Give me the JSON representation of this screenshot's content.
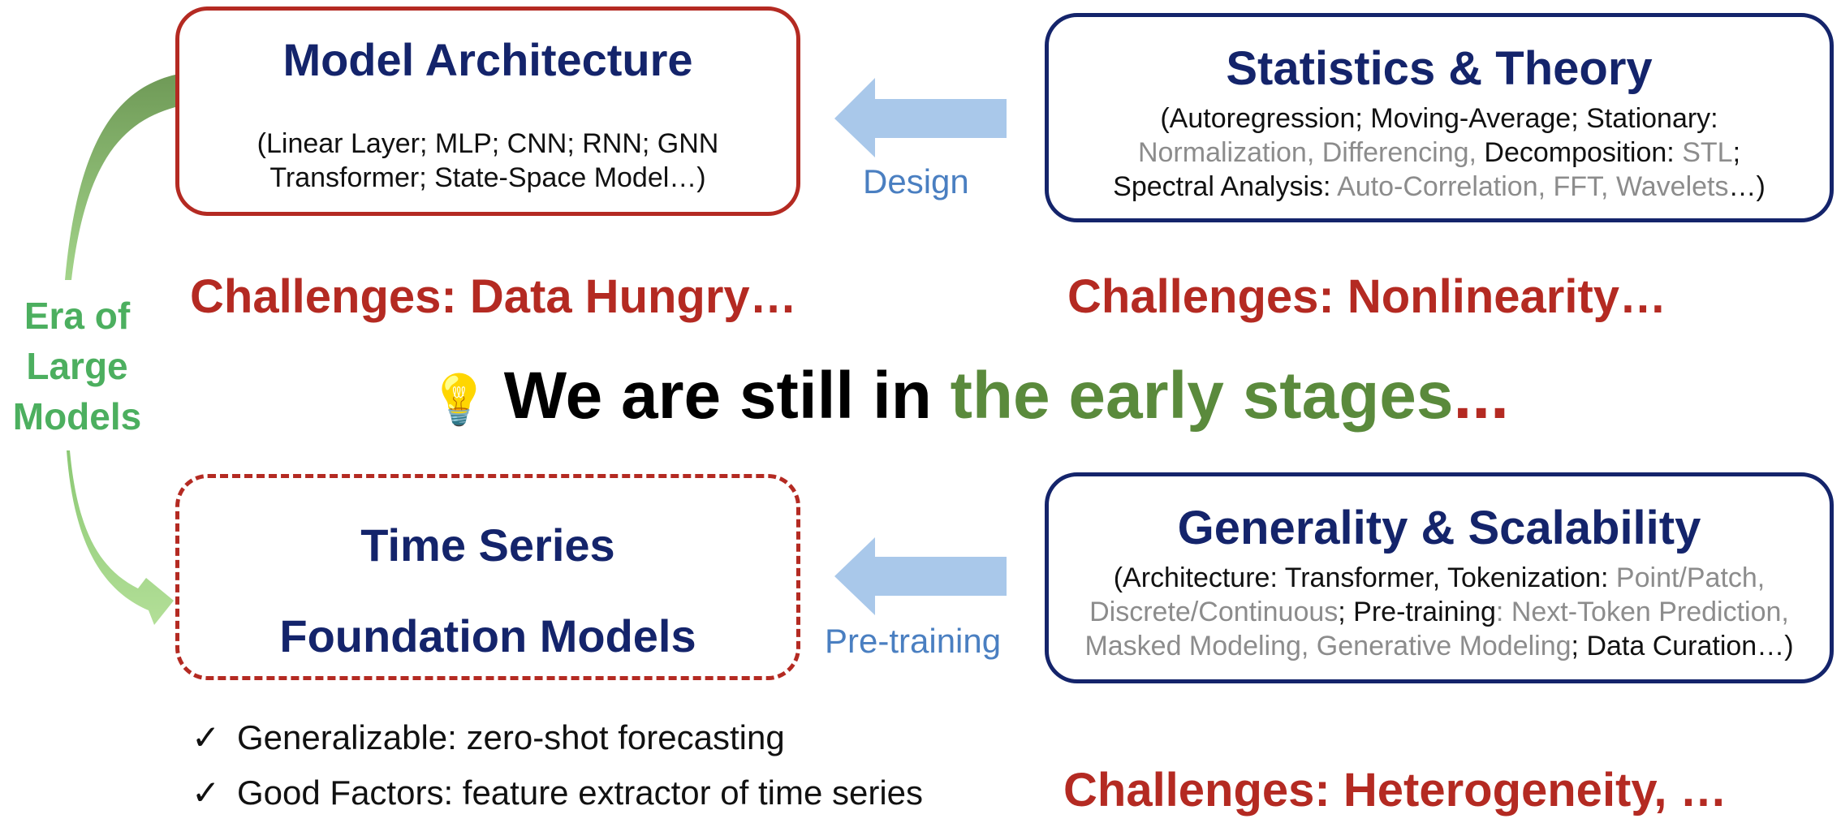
{
  "model_architecture": {
    "title": "Model Architecture",
    "line1": "(Linear Layer; MLP; CNN; RNN; GNN",
    "line2": "Transformer; State-Space Model…)"
  },
  "statistics_theory": {
    "title": "Statistics & Theory",
    "line1": "(Autoregression; Moving-Average; Stationary:",
    "line2a": "Normalization, Differencing,",
    "line2b": " Decomposition: ",
    "line2c": "STL",
    "line2d": ";",
    "line3a": "Spectral Analysis: ",
    "line3b": "Auto-Correlation, FFT, Wavelets",
    "line3c": "…)"
  },
  "design_arrow": {
    "label": "Design"
  },
  "challenge_left": "Challenges: Data Hungry…",
  "challenge_right": "Challenges: Nonlinearity…",
  "side_label": {
    "line1": "Era of",
    "line2": "Large",
    "line3": "Models"
  },
  "headline": {
    "icon": "💡",
    "part1": "We are still in ",
    "part2": "the early stages",
    "part3": "..."
  },
  "foundation_models": {
    "title_line1": "Time Series",
    "title_line2": "Foundation Models"
  },
  "pretraining_arrow": {
    "label": "Pre-training"
  },
  "generality_scalability": {
    "title": "Generality & Scalability",
    "line1a": "(Architecture: Transformer, Tokenization: ",
    "line1b": "Point/Patch,",
    "line2a": "Discrete/Continuous",
    "line2b": "; Pre-training",
    "line2c": ": Next-Token Prediction,",
    "line3a": "Masked Modeling, Generative Modeling",
    "line3b": "; Data Curation…)"
  },
  "benefits": [
    {
      "check": "✓",
      "text": "Generalizable: zero-shot forecasting"
    },
    {
      "check": "✓",
      "text": "Good Factors: feature extractor of time series"
    }
  ],
  "challenge_bottom": "Challenges: Heterogeneity, …",
  "colors": {
    "navy": "#14246b",
    "red": "#b42a22",
    "green_label": "#4caf5f",
    "green_headline": "#5a8a3c",
    "arrow_blue": "#a9c8ea",
    "arrow_label_blue": "#4a7fc1",
    "gray_text": "#8c8c8c"
  }
}
